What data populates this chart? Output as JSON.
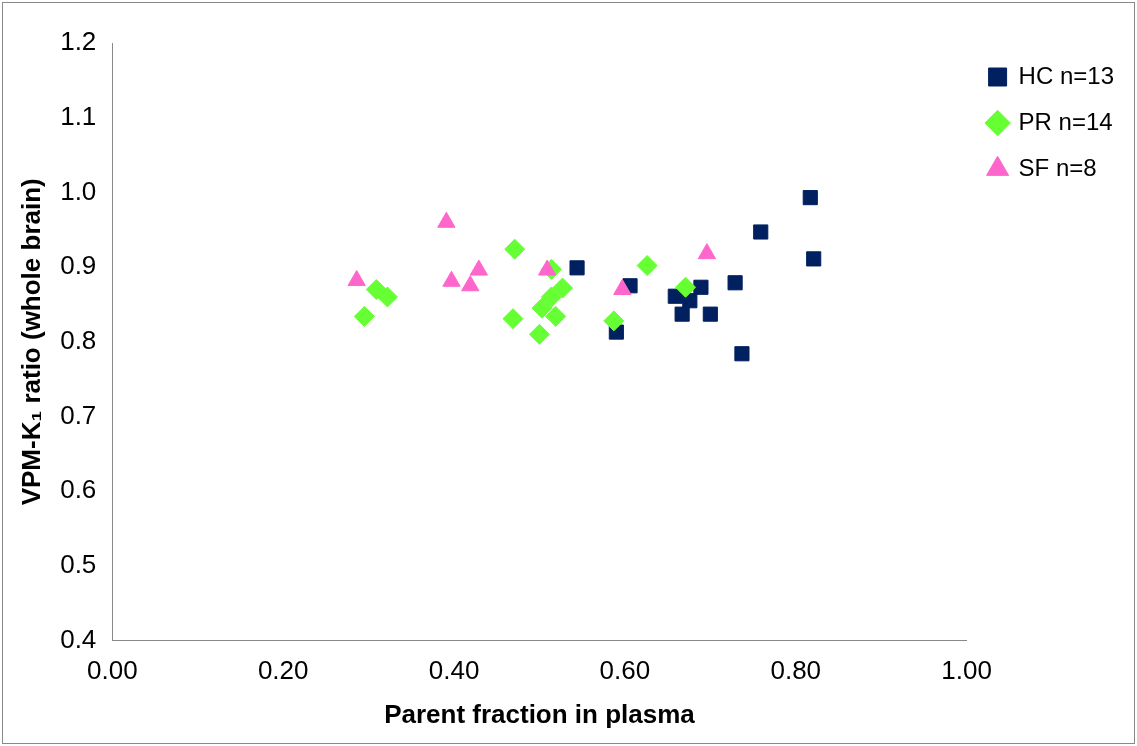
{
  "chart_data": {
    "type": "scatter",
    "xlabel": "Parent fraction in plasma",
    "ylabel": "VPM-K₁ ratio (whole brain)",
    "xlim": [
      0,
      1
    ],
    "ylim": [
      0.4,
      1.2
    ],
    "xticks": [
      {
        "value": 0,
        "label": "0.00"
      },
      {
        "value": 0.2,
        "label": "0.20"
      },
      {
        "value": 0.4,
        "label": "0.40"
      },
      {
        "value": 0.6,
        "label": "0.60"
      },
      {
        "value": 0.8,
        "label": "0.80"
      },
      {
        "value": 1,
        "label": "1.00"
      }
    ],
    "yticks": [
      0.4,
      0.5,
      0.6,
      0.7,
      0.8,
      0.9,
      {
        "value": 1,
        "label": "1.0"
      },
      1.1,
      1.2
    ],
    "grid": false,
    "legend": "top right",
    "series": [
      {
        "name": "HC n=13",
        "color": "#002060",
        "marker": "square",
        "x": [
          0.544,
          0.606,
          0.59,
          0.659,
          0.689,
          0.667,
          0.7,
          0.729,
          0.737,
          0.759,
          0.817,
          0.821,
          0.676
        ],
        "values": [
          0.899,
          0.875,
          0.813,
          0.861,
          0.873,
          0.837,
          0.837,
          0.879,
          0.784,
          0.947,
          0.993,
          0.911,
          0.855
        ]
      },
      {
        "name": "PR n=14",
        "color": "#66ff33",
        "marker": "diamond",
        "x": [
          0.295,
          0.309,
          0.322,
          0.471,
          0.469,
          0.5,
          0.514,
          0.527,
          0.514,
          0.519,
          0.587,
          0.626,
          0.671,
          0.503
        ],
        "values": [
          0.834,
          0.87,
          0.86,
          0.924,
          0.831,
          0.81,
          0.897,
          0.872,
          0.86,
          0.834,
          0.828,
          0.902,
          0.873,
          0.845
        ]
      },
      {
        "name": "SF n=8",
        "color": "#ff66cc",
        "marker": "triangle",
        "x": [
          0.286,
          0.391,
          0.397,
          0.419,
          0.429,
          0.509,
          0.597,
          0.696
        ],
        "values": [
          0.882,
          0.96,
          0.881,
          0.875,
          0.896,
          0.896,
          0.87,
          0.918
        ]
      }
    ]
  }
}
